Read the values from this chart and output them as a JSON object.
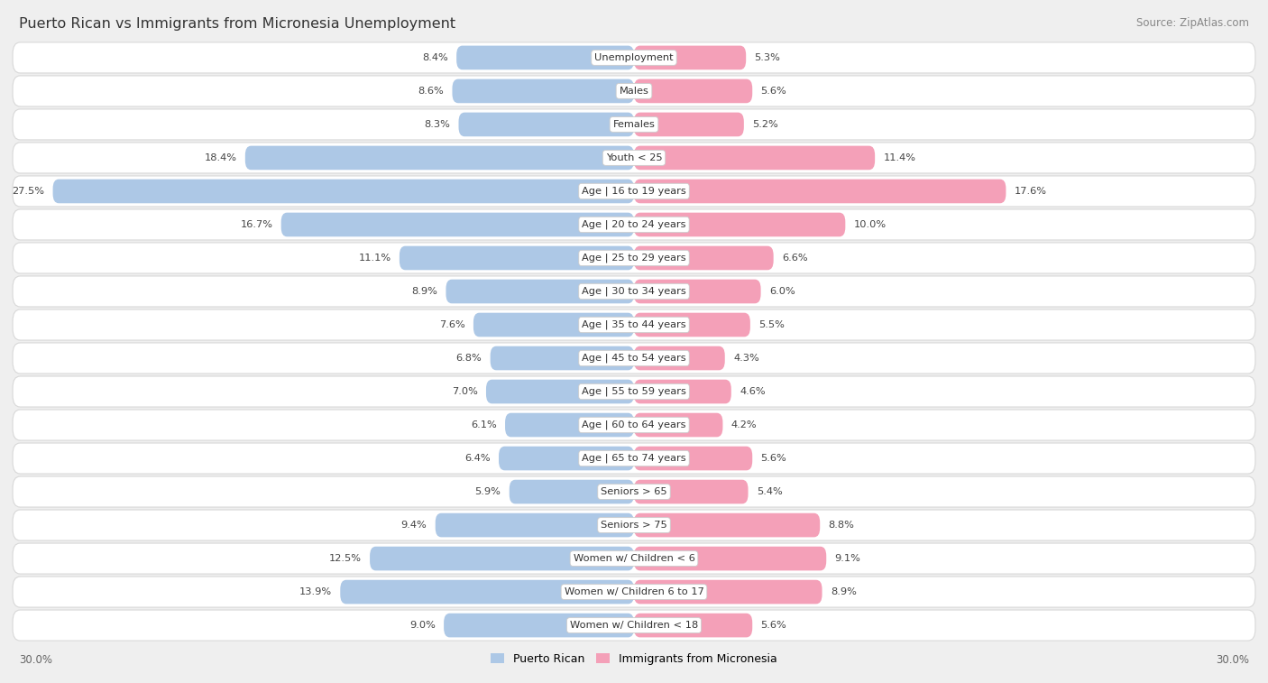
{
  "title": "Puerto Rican vs Immigrants from Micronesia Unemployment",
  "source": "Source: ZipAtlas.com",
  "categories": [
    "Unemployment",
    "Males",
    "Females",
    "Youth < 25",
    "Age | 16 to 19 years",
    "Age | 20 to 24 years",
    "Age | 25 to 29 years",
    "Age | 30 to 34 years",
    "Age | 35 to 44 years",
    "Age | 45 to 54 years",
    "Age | 55 to 59 years",
    "Age | 60 to 64 years",
    "Age | 65 to 74 years",
    "Seniors > 65",
    "Seniors > 75",
    "Women w/ Children < 6",
    "Women w/ Children 6 to 17",
    "Women w/ Children < 18"
  ],
  "puerto_rican": [
    8.4,
    8.6,
    8.3,
    18.4,
    27.5,
    16.7,
    11.1,
    8.9,
    7.6,
    6.8,
    7.0,
    6.1,
    6.4,
    5.9,
    9.4,
    12.5,
    13.9,
    9.0
  ],
  "micronesia": [
    5.3,
    5.6,
    5.2,
    11.4,
    17.6,
    10.0,
    6.6,
    6.0,
    5.5,
    4.3,
    4.6,
    4.2,
    5.6,
    5.4,
    8.8,
    9.1,
    8.9,
    5.6
  ],
  "blue_color": "#adc8e6",
  "pink_color": "#f4a0b8",
  "bg_color": "#efefef",
  "max_value": 30.0,
  "legend_left": "Puerto Rican",
  "legend_right": "Immigrants from Micronesia",
  "axis_label_left": "30.0%",
  "axis_label_right": "30.0%"
}
